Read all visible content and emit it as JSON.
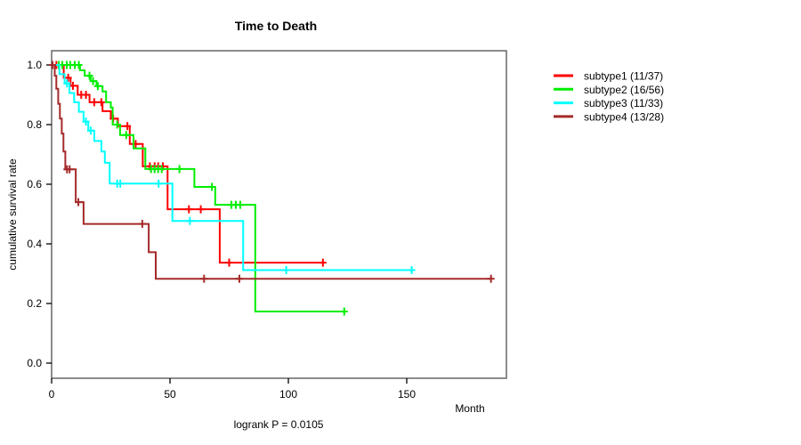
{
  "title": "Time to Death",
  "footnote": "logrank P = 0.0105",
  "axes": {
    "x": {
      "label": "Month",
      "ticks": [
        0,
        50,
        100,
        150
      ]
    },
    "y": {
      "label": "cumulative survival rate",
      "ticks": [
        "0.0",
        "0.2",
        "0.4",
        "0.6",
        "0.8",
        "1.0"
      ]
    }
  },
  "colors": {
    "subtype1": "#ff0000",
    "subtype2": "#00ee00",
    "subtype3": "#00ffff",
    "subtype4": "#a52a2a",
    "axis_box": "#4d4d4d",
    "text": "#000000"
  },
  "legend": {
    "items": [
      {
        "label": "subtype1 (11/37)",
        "color": "#ff0000"
      },
      {
        "label": "subtype2 (16/56)",
        "color": "#00ee00"
      },
      {
        "label": "subtype3 (11/33)",
        "color": "#00ffff"
      },
      {
        "label": "subtype4 (13/28)",
        "color": "#a52a2a"
      }
    ]
  },
  "chart_data": {
    "type": "line",
    "variant": "kaplan-meier-step",
    "title": "Time to Death",
    "xlabel": "Month",
    "ylabel": "cumulative survival rate",
    "annotation": "logrank P = 0.0105",
    "xlim": [
      0,
      192
    ],
    "ylim": [
      0.0,
      1.0
    ],
    "x_ticks": [
      0,
      50,
      100,
      150
    ],
    "y_ticks": [
      0.0,
      0.2,
      0.4,
      0.6,
      0.8,
      1.0
    ],
    "legend_position": "right",
    "grid": false,
    "series": [
      {
        "name": "subtype1",
        "legend": "subtype1 (11/37)",
        "events": 11,
        "n": 37,
        "color": "#ff0000",
        "steps": [
          [
            0,
            1.0
          ],
          [
            5.1,
            0.957
          ],
          [
            8,
            0.93
          ],
          [
            11,
            0.9
          ],
          [
            16,
            0.875
          ],
          [
            21.5,
            0.845
          ],
          [
            25,
            0.82
          ],
          [
            28,
            0.795
          ],
          [
            33,
            0.735
          ],
          [
            38.5,
            0.66
          ],
          [
            49,
            0.516
          ],
          [
            71,
            0.337
          ]
        ],
        "censor_months": [
          2,
          7,
          9,
          12.5,
          14.5,
          18,
          21,
          26,
          32,
          35.5,
          41.5,
          43.5,
          45,
          47,
          58,
          63,
          75,
          114.6
        ],
        "end_month": 114.6
      },
      {
        "name": "subtype2",
        "legend": "subtype2 (16/56)",
        "events": 16,
        "n": 56,
        "color": "#00ee00",
        "steps": [
          [
            0,
            1.0
          ],
          [
            12,
            0.982
          ],
          [
            14,
            0.964
          ],
          [
            16.5,
            0.946
          ],
          [
            19,
            0.929
          ],
          [
            21.5,
            0.911
          ],
          [
            23,
            0.875
          ],
          [
            25,
            0.857
          ],
          [
            25.8,
            0.8
          ],
          [
            28.9,
            0.765
          ],
          [
            34.6,
            0.72
          ],
          [
            39.6,
            0.651
          ],
          [
            60.3,
            0.591
          ],
          [
            69.1,
            0.531
          ],
          [
            86,
            0.173
          ]
        ],
        "censor_months": [
          3,
          4.5,
          6.4,
          7.9,
          9.8,
          11.5,
          16,
          17.5,
          19.5,
          27.7,
          31.5,
          42,
          43.5,
          45,
          46.5,
          54,
          67.7,
          75.9,
          77.8,
          79.7,
          123.6
        ],
        "end_month": 123.6
      },
      {
        "name": "subtype3",
        "legend": "subtype3 (11/33)",
        "events": 11,
        "n": 33,
        "color": "#00ffff",
        "steps": [
          [
            0,
            1.0
          ],
          [
            3.3,
            0.969
          ],
          [
            5.5,
            0.938
          ],
          [
            7.5,
            0.906
          ],
          [
            9.5,
            0.875
          ],
          [
            11.5,
            0.843
          ],
          [
            13.5,
            0.81
          ],
          [
            15.5,
            0.78
          ],
          [
            18,
            0.745
          ],
          [
            21,
            0.71
          ],
          [
            22.5,
            0.672
          ],
          [
            24.5,
            0.602
          ],
          [
            51,
            0.477
          ],
          [
            80.9,
            0.312
          ]
        ],
        "censor_months": [
          6.5,
          14.5,
          16.5,
          27.7,
          29,
          45.2,
          58.4,
          99.1,
          152.1
        ],
        "end_month": 152.1
      },
      {
        "name": "subtype4",
        "legend": "subtype4 (13/28)",
        "events": 13,
        "n": 28,
        "color": "#a52a2a",
        "steps": [
          [
            0,
            1.0
          ],
          [
            1.3,
            0.964
          ],
          [
            2,
            0.92
          ],
          [
            2.8,
            0.87
          ],
          [
            3.5,
            0.82
          ],
          [
            4.3,
            0.77
          ],
          [
            5,
            0.71
          ],
          [
            5.8,
            0.65
          ],
          [
            10.2,
            0.54
          ],
          [
            13.5,
            0.467
          ],
          [
            41,
            0.372
          ],
          [
            44,
            0.283
          ]
        ],
        "censor_months": [
          0.4,
          6.5,
          7.6,
          11.3,
          38.3,
          64.4,
          79.3,
          185.6
        ],
        "end_month": 185.6
      }
    ]
  }
}
